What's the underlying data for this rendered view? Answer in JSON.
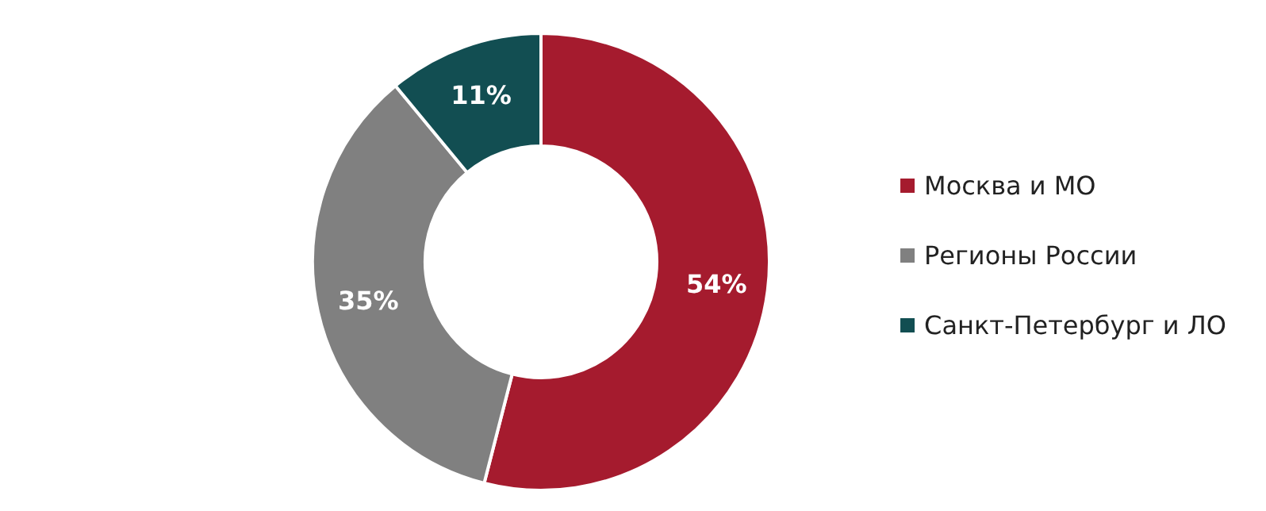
{
  "chart_data": {
    "type": "donut",
    "categories": [
      "Москва и МО",
      "Регионы России",
      "Санкт-Петербург и ЛО"
    ],
    "values": [
      54,
      35,
      11
    ],
    "colors": [
      "#a51b2e",
      "#808080",
      "#124e52"
    ],
    "value_labels": [
      "54%",
      "35%",
      "11%"
    ],
    "legend": "right"
  }
}
